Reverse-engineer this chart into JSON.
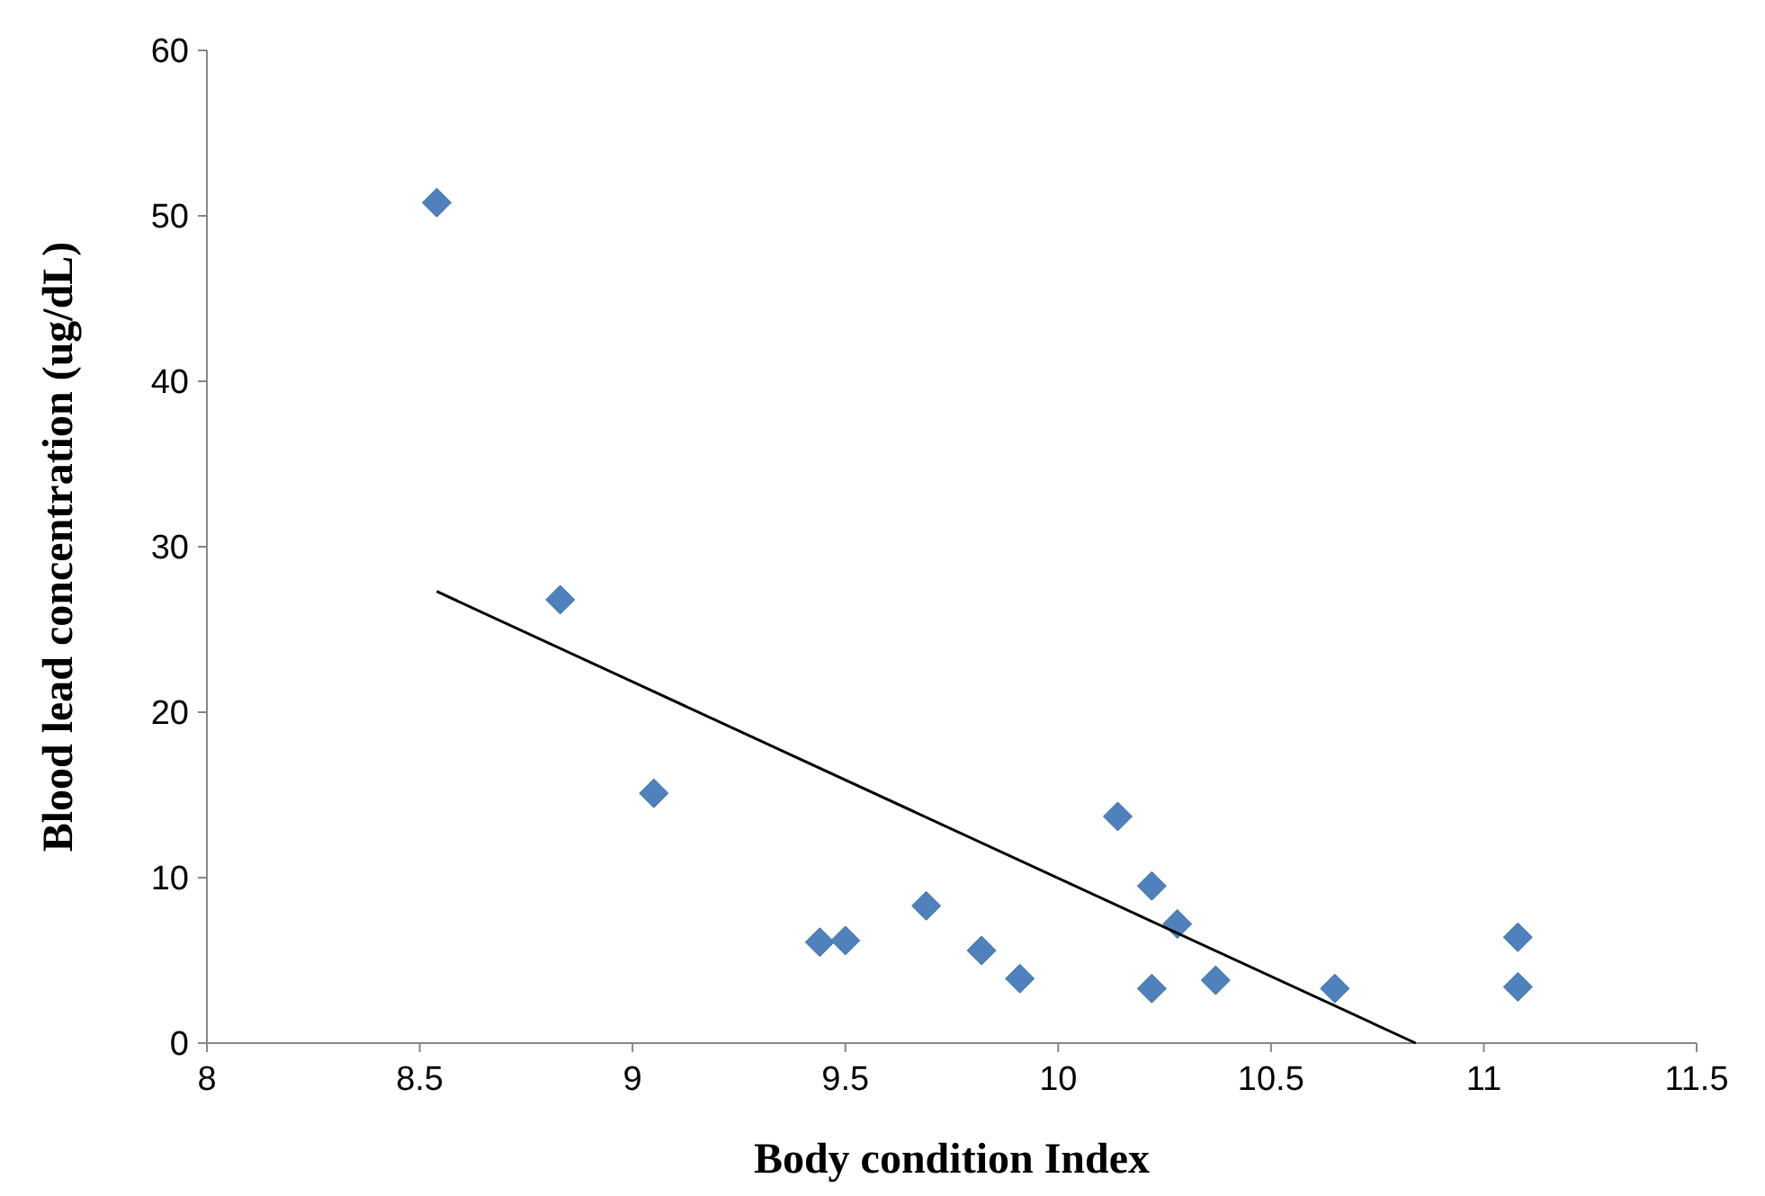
{
  "chart_data": {
    "type": "scatter",
    "xlabel": "Body condition Index",
    "ylabel": "Blood lead concentration (ug/dL)",
    "xlim": [
      8,
      11.5
    ],
    "xticks": [
      8,
      8.5,
      9,
      9.5,
      10,
      10.5,
      11,
      11.5
    ],
    "ylim": [
      0,
      60
    ],
    "yticks": [
      0,
      10,
      20,
      30,
      40,
      50,
      60
    ],
    "grid": false,
    "series": [
      {
        "marker": "diamond",
        "color": "#4f81bd",
        "x": [
          8.54,
          8.83,
          9.05,
          9.44,
          9.5,
          9.69,
          9.82,
          9.91,
          10.14,
          10.22,
          10.28,
          10.22,
          10.37,
          10.65,
          11.08,
          11.08
        ],
        "values": [
          50.8,
          26.8,
          15.1,
          6.1,
          6.2,
          8.3,
          5.6,
          3.9,
          13.7,
          9.5,
          7.2,
          3.3,
          3.8,
          3.3,
          6.4,
          3.4
        ]
      },
      {
        "type": "line",
        "color": "#000000",
        "x": [
          8.54,
          10.84
        ],
        "values": [
          27.3,
          0
        ]
      }
    ]
  }
}
